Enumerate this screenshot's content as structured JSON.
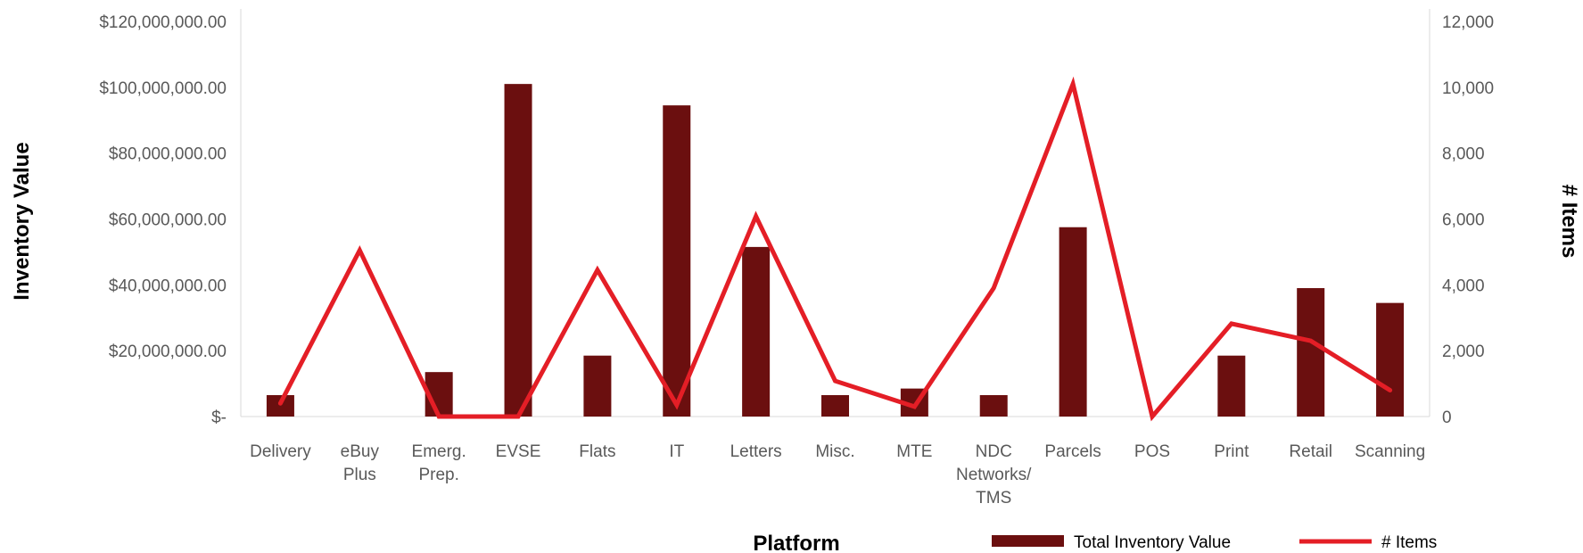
{
  "chart_data": {
    "type": "bar",
    "categories": [
      "Delivery",
      "eBuy Plus",
      "Emerg. Prep.",
      "EVSE",
      "Flats",
      "IT",
      "Letters",
      "Misc.",
      "MTE",
      "NDC Networks/ TMS",
      "Parcels",
      "POS",
      "Print",
      "Retail",
      "Scanning"
    ],
    "series": [
      {
        "name": "Total Inventory Value",
        "kind": "bar",
        "axis": "left",
        "color": "#6B0F0F",
        "values": [
          6500000,
          0,
          13500000,
          101000000,
          18500000,
          94500000,
          51500000,
          6500000,
          8500000,
          6500000,
          57500000,
          0,
          18500000,
          39000000,
          34500000
        ]
      },
      {
        "name": "# Items",
        "kind": "line",
        "axis": "right",
        "color": "#E41E26",
        "values": [
          400,
          5050,
          0,
          0,
          4450,
          350,
          6080,
          1080,
          300,
          3900,
          10100,
          0,
          2820,
          2300,
          800
        ]
      }
    ],
    "xlabel": "Platform",
    "ylabel": "Inventory Value",
    "y2label": "# Items",
    "ylim": [
      0,
      120000000
    ],
    "y2lim": [
      0,
      12000
    ],
    "yticks": [
      "$-",
      "$20,000,000.00",
      "$40,000,000.00",
      "$60,000,000.00",
      "$80,000,000.00",
      "$100,000,000.00",
      "$120,000,000.00"
    ],
    "y2ticks": [
      "0",
      "2,000",
      "4,000",
      "6,000",
      "8,000",
      "10,000",
      "12,000"
    ],
    "legend": [
      "Total Inventory Value",
      "# Items"
    ],
    "legend_position": "bottom-right",
    "grid": false
  }
}
